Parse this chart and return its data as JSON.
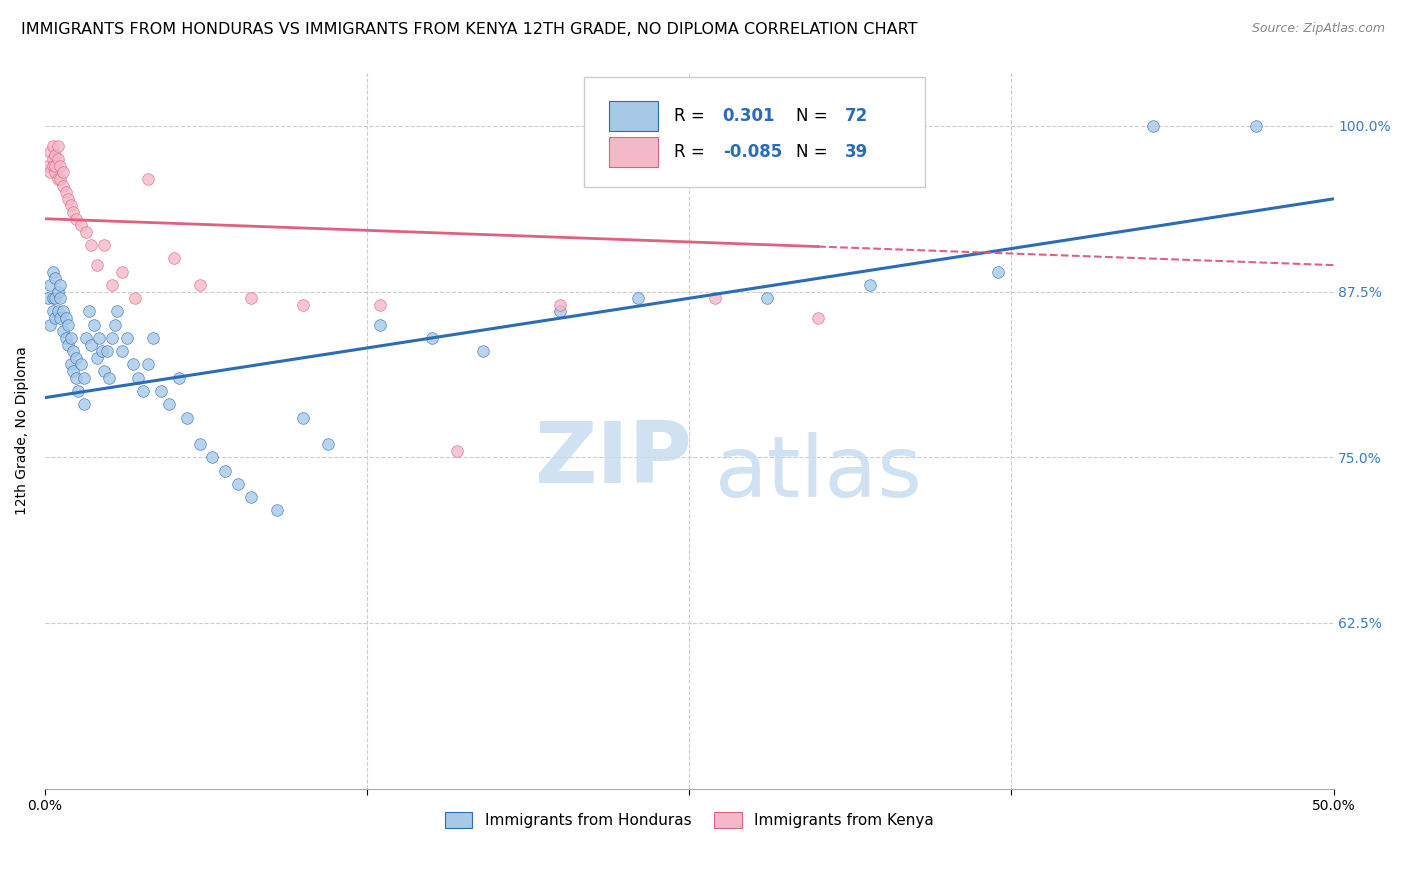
{
  "title": "IMMIGRANTS FROM HONDURAS VS IMMIGRANTS FROM KENYA 12TH GRADE, NO DIPLOMA CORRELATION CHART",
  "source": "Source: ZipAtlas.com",
  "ylabel": "12th Grade, No Diploma",
  "ytick_labels": [
    "100.0%",
    "87.5%",
    "75.0%",
    "62.5%"
  ],
  "ytick_values": [
    1.0,
    0.875,
    0.75,
    0.625
  ],
  "xlim": [
    0.0,
    0.5
  ],
  "ylim": [
    0.5,
    1.04
  ],
  "legend_r_honduras": "0.301",
  "legend_n_honduras": "72",
  "legend_r_kenya": "-0.085",
  "legend_n_kenya": "39",
  "color_honduras": "#a8c8e8",
  "color_kenya": "#f4b8c8",
  "line_color_honduras": "#2b6cb8",
  "line_color_kenya": "#e06080",
  "watermark_zip": "ZIP",
  "watermark_atlas": "atlas",
  "title_fontsize": 11.5,
  "axis_label_fontsize": 10,
  "tick_fontsize": 10,
  "honduras_scatter_x": [
    0.001,
    0.002,
    0.002,
    0.003,
    0.003,
    0.003,
    0.004,
    0.004,
    0.004,
    0.005,
    0.005,
    0.006,
    0.006,
    0.006,
    0.007,
    0.007,
    0.008,
    0.008,
    0.009,
    0.009,
    0.01,
    0.01,
    0.011,
    0.011,
    0.012,
    0.012,
    0.013,
    0.014,
    0.015,
    0.015,
    0.016,
    0.017,
    0.018,
    0.019,
    0.02,
    0.021,
    0.022,
    0.023,
    0.024,
    0.025,
    0.026,
    0.027,
    0.028,
    0.03,
    0.032,
    0.034,
    0.036,
    0.038,
    0.04,
    0.042,
    0.045,
    0.048,
    0.052,
    0.055,
    0.06,
    0.065,
    0.07,
    0.075,
    0.08,
    0.09,
    0.1,
    0.11,
    0.13,
    0.15,
    0.17,
    0.2,
    0.23,
    0.28,
    0.32,
    0.37,
    0.43,
    0.47
  ],
  "honduras_scatter_y": [
    0.87,
    0.85,
    0.88,
    0.86,
    0.87,
    0.89,
    0.855,
    0.87,
    0.885,
    0.86,
    0.875,
    0.855,
    0.87,
    0.88,
    0.845,
    0.86,
    0.84,
    0.855,
    0.835,
    0.85,
    0.82,
    0.84,
    0.815,
    0.83,
    0.81,
    0.825,
    0.8,
    0.82,
    0.79,
    0.81,
    0.84,
    0.86,
    0.835,
    0.85,
    0.825,
    0.84,
    0.83,
    0.815,
    0.83,
    0.81,
    0.84,
    0.85,
    0.86,
    0.83,
    0.84,
    0.82,
    0.81,
    0.8,
    0.82,
    0.84,
    0.8,
    0.79,
    0.81,
    0.78,
    0.76,
    0.75,
    0.74,
    0.73,
    0.72,
    0.71,
    0.78,
    0.76,
    0.85,
    0.84,
    0.83,
    0.86,
    0.87,
    0.87,
    0.88,
    0.89,
    1.0,
    1.0
  ],
  "kenya_scatter_x": [
    0.001,
    0.002,
    0.002,
    0.003,
    0.003,
    0.003,
    0.004,
    0.004,
    0.004,
    0.005,
    0.005,
    0.005,
    0.006,
    0.006,
    0.007,
    0.007,
    0.008,
    0.009,
    0.01,
    0.011,
    0.012,
    0.014,
    0.016,
    0.018,
    0.02,
    0.023,
    0.026,
    0.03,
    0.035,
    0.04,
    0.05,
    0.06,
    0.08,
    0.1,
    0.13,
    0.16,
    0.2,
    0.26,
    0.3
  ],
  "kenya_scatter_y": [
    0.97,
    0.965,
    0.98,
    0.975,
    0.97,
    0.985,
    0.965,
    0.978,
    0.97,
    0.96,
    0.975,
    0.985,
    0.96,
    0.97,
    0.955,
    0.965,
    0.95,
    0.945,
    0.94,
    0.935,
    0.93,
    0.925,
    0.92,
    0.91,
    0.895,
    0.91,
    0.88,
    0.89,
    0.87,
    0.96,
    0.9,
    0.88,
    0.87,
    0.865,
    0.865,
    0.755,
    0.865,
    0.87,
    0.855
  ],
  "kenya_line_solid_end": 0.3,
  "honduras_line_y_at_0": 0.795,
  "honduras_line_y_at_50": 0.945,
  "kenya_line_y_at_0": 0.93,
  "kenya_line_y_at_50": 0.895
}
